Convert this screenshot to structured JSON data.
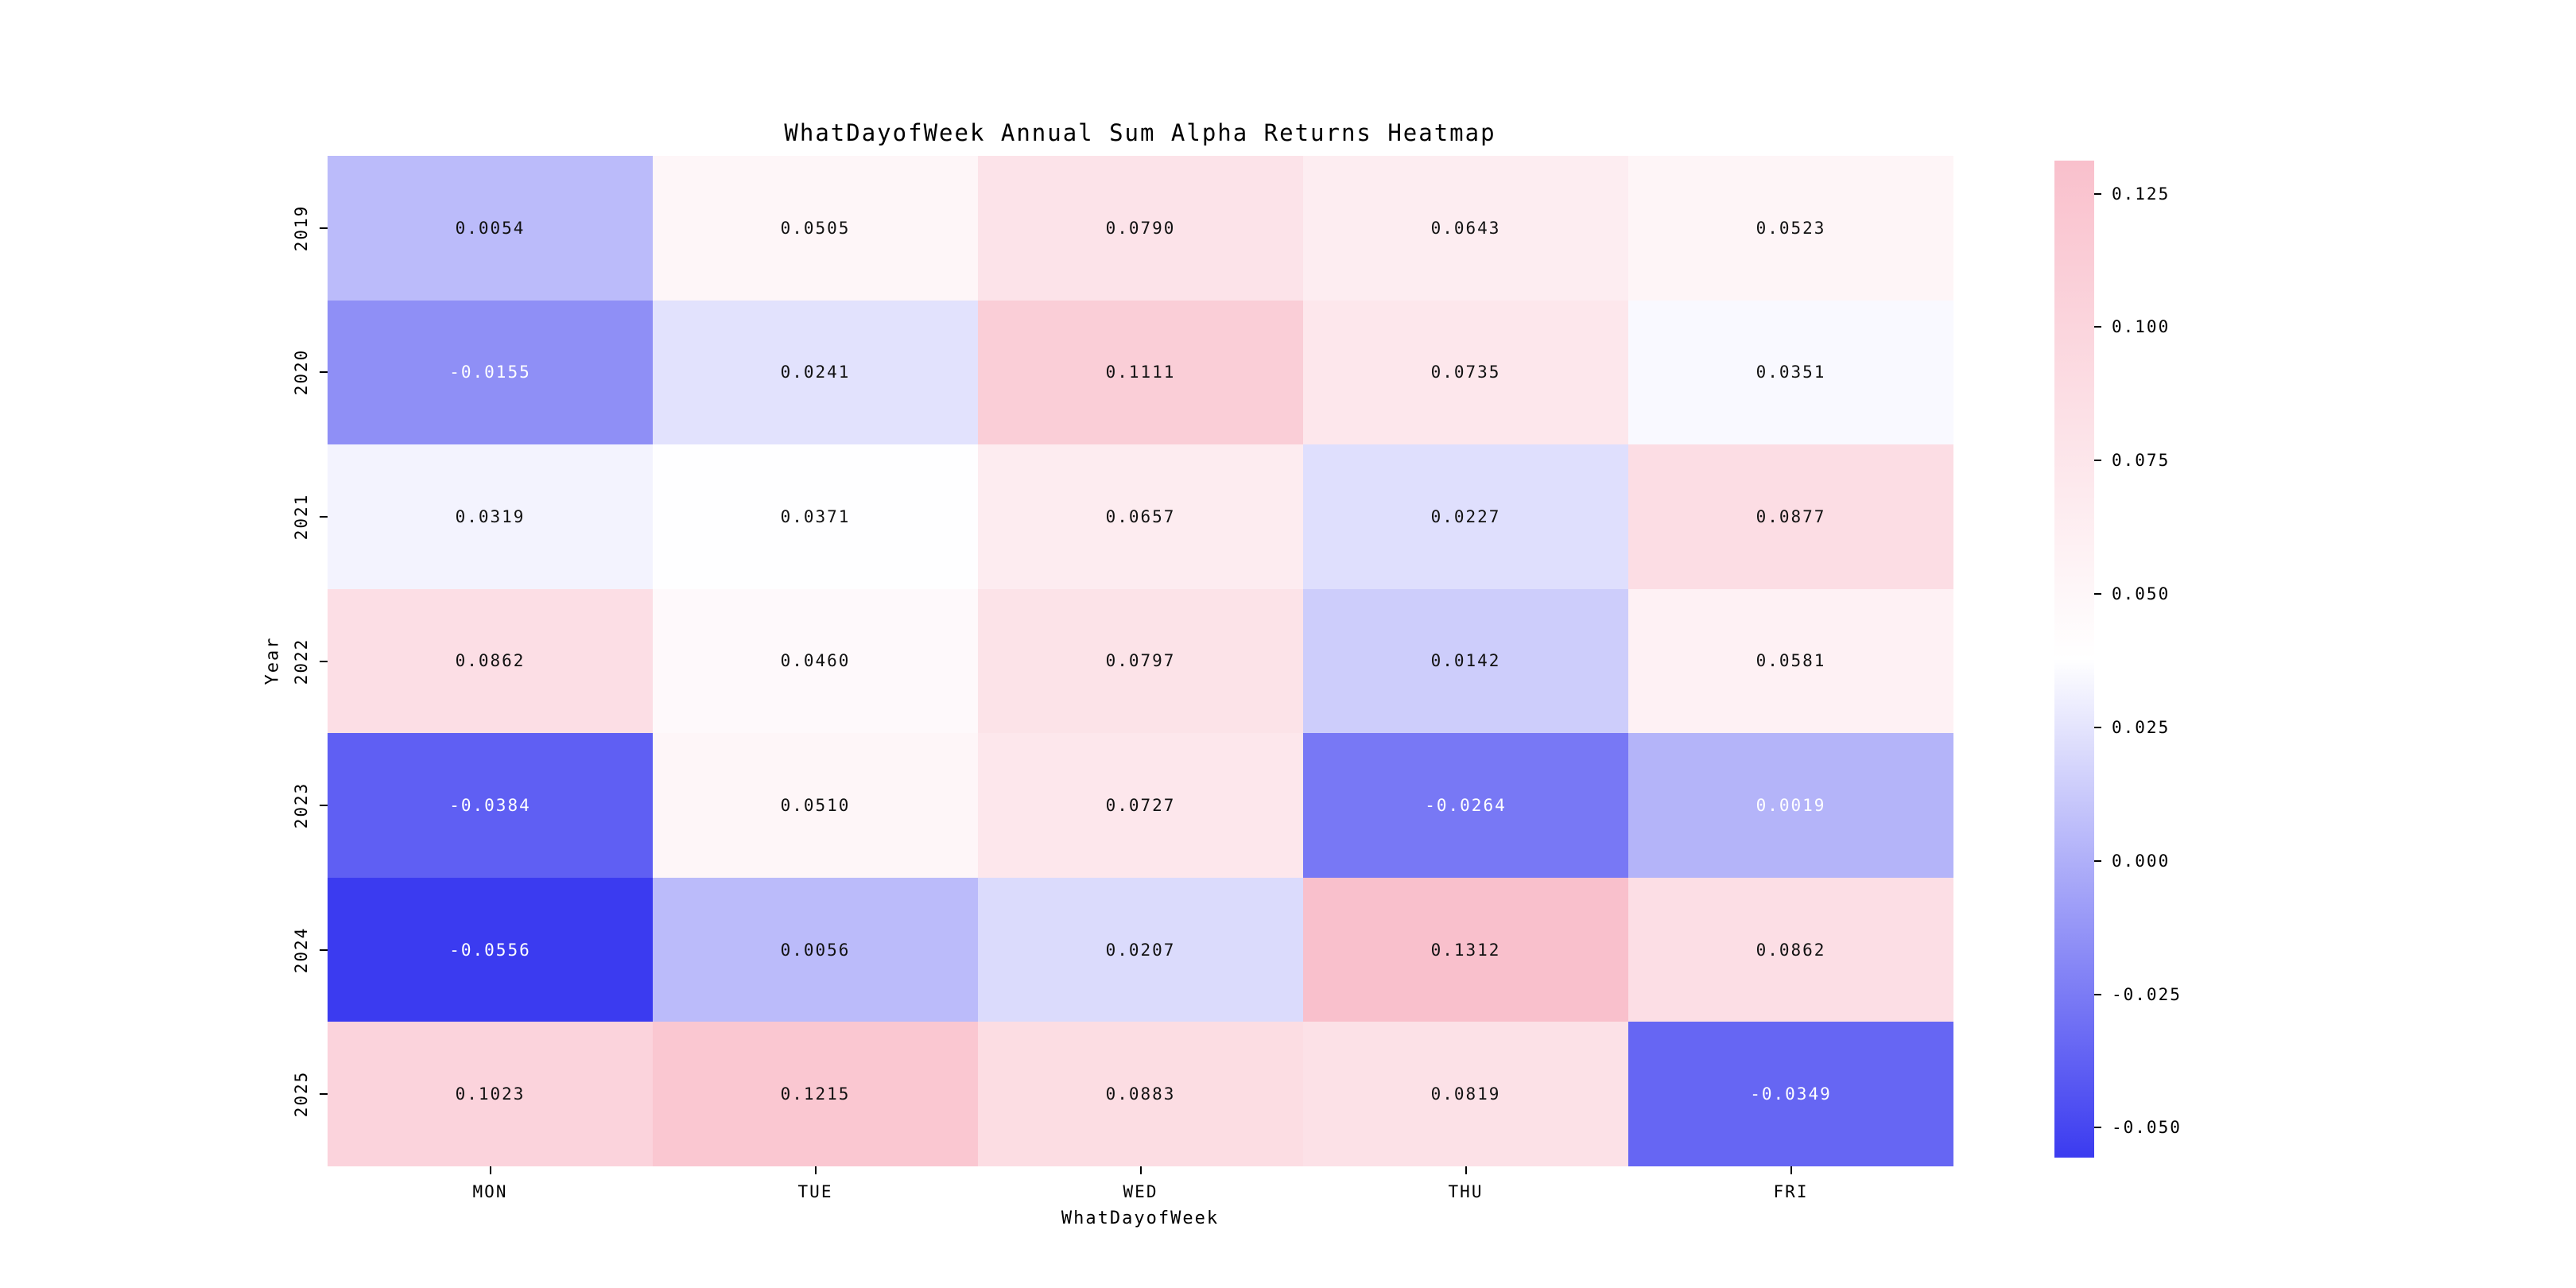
{
  "figure": {
    "background": "#ffffff"
  },
  "chart_data": {
    "type": "heatmap",
    "title": "WhatDayofWeek Annual Sum Alpha Returns Heatmap",
    "xlabel": "WhatDayofWeek",
    "ylabel": "Year",
    "columns": [
      "MON",
      "TUE",
      "WED",
      "THU",
      "FRI"
    ],
    "rows": [
      "2019",
      "2020",
      "2021",
      "2022",
      "2023",
      "2024",
      "2025"
    ],
    "values": [
      [
        "0.0054",
        "0.0505",
        "0.0790",
        "0.0643",
        "0.0523"
      ],
      [
        "-0.0155",
        "0.0241",
        "0.1111",
        "0.0735",
        "0.0351"
      ],
      [
        "0.0319",
        "0.0371",
        "0.0657",
        "0.0227",
        "0.0877"
      ],
      [
        "0.0862",
        "0.0460",
        "0.0797",
        "0.0142",
        "0.0581"
      ],
      [
        "-0.0384",
        "0.0510",
        "0.0727",
        "-0.0264",
        "0.0019"
      ],
      [
        "-0.0556",
        "0.0056",
        "0.0207",
        "0.1312",
        "0.0862"
      ],
      [
        "0.1023",
        "0.1215",
        "0.0883",
        "0.0819",
        "-0.0349"
      ]
    ],
    "vmin": -0.0556,
    "vmax": 0.1312,
    "colormap": {
      "name": "blue-white-pink-diverging",
      "negative_end": "#3b3bf0",
      "center": "#ffffff",
      "positive_end": "#f9c0cc"
    },
    "colorbar": {
      "tick_labels": [
        "0.125",
        "0.100",
        "0.075",
        "0.050",
        "0.025",
        "0.000",
        "-0.025",
        "-0.050"
      ]
    },
    "text_colors": {
      "light": "#ffffff",
      "dark": "#111111"
    }
  }
}
